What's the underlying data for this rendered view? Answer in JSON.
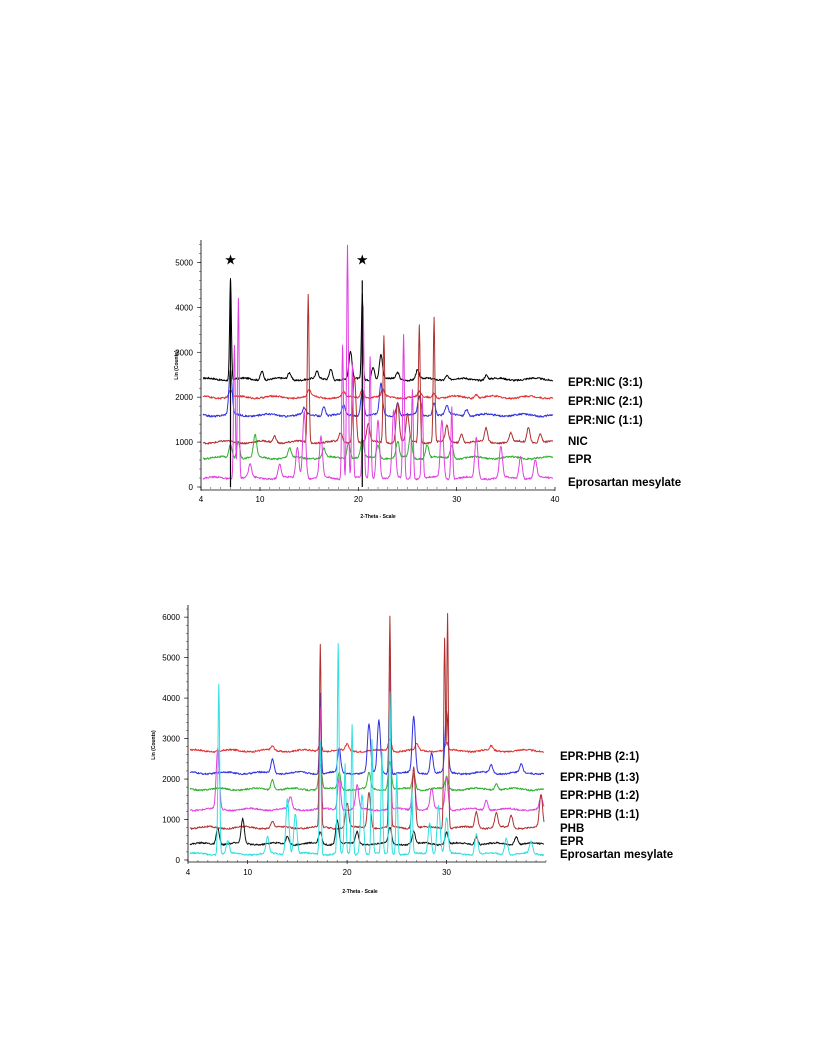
{
  "chart_data": [
    {
      "type": "line",
      "xlabel": "2-Theta - Scale",
      "ylabel": "Lin (Counts)",
      "xlim": [
        4,
        40
      ],
      "ylim": [
        0,
        5500
      ],
      "x_ticks": [
        "4",
        "10",
        "20",
        "30",
        "40"
      ],
      "y_ticks": [
        "0",
        "1000",
        "2000",
        "3000",
        "4000",
        "5000"
      ],
      "markers": [
        {
          "x": 7.0,
          "symbol": "★"
        },
        {
          "x": 20.4,
          "symbol": "★"
        }
      ],
      "series": [
        {
          "name": "EPR:NIC (3:1)",
          "color": "#000000",
          "baseline": 2400,
          "peaks": [
            [
              7.0,
              2250
            ],
            [
              10.2,
              200
            ],
            [
              13.0,
              150
            ],
            [
              15.8,
              150
            ],
            [
              17.2,
              250
            ],
            [
              19.2,
              600
            ],
            [
              20.4,
              1900
            ],
            [
              21.5,
              300
            ],
            [
              22.3,
              550
            ],
            [
              24.0,
              150
            ],
            [
              26.0,
              200
            ],
            [
              29.0,
              100
            ],
            [
              33.0,
              100
            ]
          ]
        },
        {
          "name": "EPR:NIC (2:1)",
          "color": "#e03030",
          "baseline": 2000,
          "peaks": [
            [
              7.0,
              150
            ],
            [
              15.0,
              150
            ],
            [
              18.5,
              100
            ],
            [
              20.4,
              200
            ],
            [
              22.5,
              150
            ],
            [
              26.2,
              100
            ],
            [
              27.7,
              100
            ],
            [
              32.0,
              80
            ]
          ]
        },
        {
          "name": "EPR:NIC (1:1)",
          "color": "#3030e0",
          "baseline": 1600,
          "peaks": [
            [
              7.0,
              1000
            ],
            [
              14.5,
              150
            ],
            [
              16.5,
              200
            ],
            [
              18.5,
              200
            ],
            [
              20.4,
              550
            ],
            [
              22.3,
              700
            ],
            [
              24.0,
              300
            ],
            [
              26.2,
              400
            ],
            [
              27.7,
              300
            ],
            [
              29.0,
              200
            ],
            [
              31.0,
              150
            ]
          ]
        },
        {
          "name": "NIC",
          "color": "#b03030",
          "baseline": 1000,
          "peaks": [
            [
              11.5,
              150
            ],
            [
              14.9,
              3300
            ],
            [
              18.2,
              200
            ],
            [
              19.6,
              1500
            ],
            [
              21.0,
              400
            ],
            [
              22.6,
              2400
            ],
            [
              24.0,
              900
            ],
            [
              25.0,
              600
            ],
            [
              26.2,
              2600
            ],
            [
              27.7,
              2800
            ],
            [
              29.0,
              350
            ],
            [
              30.5,
              200
            ],
            [
              33.0,
              300
            ],
            [
              35.5,
              200
            ],
            [
              37.3,
              350
            ],
            [
              38.5,
              200
            ]
          ]
        },
        {
          "name": "EPR",
          "color": "#30b030",
          "baseline": 650,
          "peaks": [
            [
              7.0,
              300
            ],
            [
              7.8,
              400
            ],
            [
              9.5,
              500
            ],
            [
              13.0,
              200
            ],
            [
              16.5,
              200
            ],
            [
              19.0,
              350
            ],
            [
              20.4,
              400
            ],
            [
              22.0,
              300
            ],
            [
              24.0,
              350
            ],
            [
              25.3,
              500
            ],
            [
              27.0,
              300
            ],
            [
              29.5,
              300
            ]
          ]
        },
        {
          "name": "Eprosartan mesylate",
          "color": "#e040e0",
          "baseline": 200,
          "peaks": [
            [
              7.4,
              3000
            ],
            [
              7.8,
              4000
            ],
            [
              9.0,
              300
            ],
            [
              12.0,
              300
            ],
            [
              13.8,
              700
            ],
            [
              14.5,
              1500
            ],
            [
              16.2,
              900
            ],
            [
              18.4,
              3000
            ],
            [
              18.9,
              5200
            ],
            [
              19.4,
              2500
            ],
            [
              20.5,
              3800
            ],
            [
              21.2,
              2700
            ],
            [
              22.0,
              1300
            ],
            [
              23.6,
              1500
            ],
            [
              24.6,
              3200
            ],
            [
              25.5,
              2000
            ],
            [
              26.5,
              1800
            ],
            [
              28.5,
              1300
            ],
            [
              29.5,
              1600
            ],
            [
              32.0,
              900
            ],
            [
              34.5,
              700
            ],
            [
              36.5,
              500
            ],
            [
              38.0,
              400
            ]
          ]
        }
      ]
    },
    {
      "type": "line",
      "xlabel": "2-Theta - Scale",
      "ylabel": "Lin (Counts)",
      "xlim": [
        4,
        40
      ],
      "ylim": [
        0,
        6300
      ],
      "x_ticks": [
        "4",
        "10",
        "20",
        "30"
      ],
      "y_ticks": [
        "0",
        "1000",
        "2000",
        "3000",
        "4000",
        "5000",
        "6000"
      ],
      "series": [
        {
          "name": "EPR:PHB (2:1)",
          "color": "#e03030",
          "baseline": 2700,
          "peaks": [
            [
              12.5,
              100
            ],
            [
              17.3,
              200
            ],
            [
              20.0,
              150
            ],
            [
              24.3,
              300
            ],
            [
              27.0,
              150
            ],
            [
              30.0,
              200
            ],
            [
              34.5,
              100
            ]
          ]
        },
        {
          "name": "EPR:PHB (1:3)",
          "color": "#3030e0",
          "baseline": 2150,
          "peaks": [
            [
              12.5,
              350
            ],
            [
              17.3,
              2000
            ],
            [
              19.2,
              600
            ],
            [
              22.2,
              1200
            ],
            [
              23.2,
              1300
            ],
            [
              24.3,
              2900
            ],
            [
              26.7,
              1400
            ],
            [
              28.5,
              500
            ],
            [
              30.0,
              1500
            ],
            [
              34.5,
              200
            ],
            [
              37.5,
              200
            ]
          ]
        },
        {
          "name": "EPR:PHB (1:2)",
          "color": "#30b030",
          "baseline": 1750,
          "peaks": [
            [
              12.5,
              250
            ],
            [
              17.3,
              600
            ],
            [
              19.2,
              400
            ],
            [
              22.2,
              400
            ],
            [
              24.3,
              700
            ],
            [
              26.7,
              400
            ],
            [
              30.0,
              300
            ],
            [
              35.0,
              150
            ]
          ]
        },
        {
          "name": "EPR:PHB (1:1)",
          "color": "#e040e0",
          "baseline": 1250,
          "peaks": [
            [
              7.0,
              1500
            ],
            [
              14.3,
              300
            ],
            [
              17.3,
              2500
            ],
            [
              19.2,
              800
            ],
            [
              21.0,
              600
            ],
            [
              24.3,
              3500
            ],
            [
              26.7,
              900
            ],
            [
              28.5,
              500
            ],
            [
              30.0,
              800
            ],
            [
              34.0,
              250
            ],
            [
              39.5,
              300
            ]
          ]
        },
        {
          "name": "PHB",
          "color": "#b03030",
          "baseline": 800,
          "peaks": [
            [
              12.5,
              150
            ],
            [
              17.3,
              4500
            ],
            [
              20.0,
              600
            ],
            [
              22.2,
              900
            ],
            [
              24.3,
              5200
            ],
            [
              26.7,
              1500
            ],
            [
              29.8,
              4700
            ],
            [
              30.1,
              5300
            ],
            [
              33.0,
              400
            ],
            [
              35.0,
              350
            ],
            [
              36.5,
              300
            ],
            [
              39.5,
              800
            ]
          ]
        },
        {
          "name": "EPR",
          "color": "#111111",
          "baseline": 400,
          "peaks": [
            [
              7.0,
              400
            ],
            [
              9.5,
              600
            ],
            [
              14.0,
              200
            ],
            [
              17.3,
              300
            ],
            [
              19.0,
              600
            ],
            [
              21.0,
              300
            ],
            [
              24.3,
              400
            ],
            [
              26.7,
              300
            ],
            [
              30.0,
              300
            ],
            [
              33.0,
              200
            ],
            [
              37.0,
              200
            ]
          ]
        },
        {
          "name": "Eprosartan mesylate",
          "color": "#30e0e0",
          "baseline": 150,
          "peaks": [
            [
              7.1,
              4200
            ],
            [
              8.0,
              300
            ],
            [
              12.0,
              400
            ],
            [
              14.0,
              1400
            ],
            [
              14.8,
              1000
            ],
            [
              17.3,
              2800
            ],
            [
              19.1,
              5200
            ],
            [
              19.8,
              2200
            ],
            [
              20.5,
              3200
            ],
            [
              21.5,
              1500
            ],
            [
              22.5,
              2800
            ],
            [
              23.5,
              2500
            ],
            [
              24.3,
              4000
            ],
            [
              25.0,
              2000
            ],
            [
              26.5,
              1600
            ],
            [
              28.3,
              800
            ],
            [
              29.2,
              1200
            ],
            [
              30.0,
              900
            ],
            [
              33.0,
              500
            ],
            [
              36.0,
              400
            ],
            [
              38.5,
              300
            ]
          ]
        }
      ]
    }
  ]
}
